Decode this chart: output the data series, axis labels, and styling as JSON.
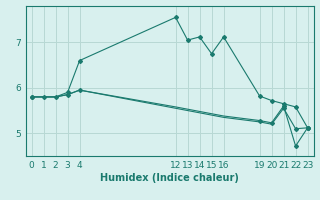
{
  "xlabel": "Humidex (Indice chaleur)",
  "background_color": "#d8f0ee",
  "line_color": "#1a7a6e",
  "grid_color": "#b8d8d4",
  "lines": [
    {
      "x": [
        0,
        1,
        2,
        3,
        4,
        12,
        13,
        14,
        15,
        16,
        19,
        20,
        21,
        22,
        23
      ],
      "y": [
        5.8,
        5.8,
        5.8,
        5.85,
        5.95,
        5.55,
        5.5,
        5.45,
        5.4,
        5.35,
        5.25,
        5.2,
        5.55,
        5.1,
        5.12
      ],
      "markers_x": [
        0,
        1,
        2,
        3,
        4,
        21,
        22,
        23
      ],
      "markers_y": [
        5.8,
        5.8,
        5.8,
        5.85,
        5.95,
        5.55,
        5.1,
        5.12
      ]
    },
    {
      "x": [
        0,
        1,
        2,
        3,
        4,
        12,
        13,
        14,
        15,
        16,
        19,
        20,
        21,
        22,
        23
      ],
      "y": [
        5.8,
        5.8,
        5.8,
        5.85,
        5.95,
        5.58,
        5.53,
        5.48,
        5.43,
        5.38,
        5.28,
        5.23,
        5.6,
        4.72,
        5.12
      ],
      "markers_x": [
        19,
        20,
        21,
        22,
        23
      ],
      "markers_y": [
        5.28,
        5.23,
        5.6,
        4.72,
        5.12
      ]
    },
    {
      "x": [
        0,
        1,
        2,
        3,
        4,
        12,
        13,
        14,
        15,
        16,
        19,
        20,
        21,
        22,
        23
      ],
      "y": [
        5.8,
        5.8,
        5.8,
        5.9,
        6.6,
        7.55,
        7.05,
        7.12,
        6.75,
        7.12,
        5.82,
        5.72,
        5.65,
        5.58,
        5.12
      ],
      "markers_x": [
        0,
        3,
        4,
        12,
        13,
        14,
        15,
        16,
        19,
        20,
        21,
        22,
        23
      ],
      "markers_y": [
        5.8,
        5.9,
        6.6,
        7.55,
        7.05,
        7.12,
        6.75,
        7.12,
        5.82,
        5.72,
        5.65,
        5.58,
        5.12
      ]
    }
  ],
  "xticks": [
    0,
    1,
    2,
    3,
    4,
    12,
    13,
    14,
    15,
    16,
    19,
    20,
    21,
    22,
    23
  ],
  "yticks": [
    5,
    6,
    7
  ],
  "xlim": [
    -0.5,
    23.5
  ],
  "ylim": [
    4.5,
    7.8
  ],
  "label_fontsize": 7,
  "tick_fontsize": 6.5
}
